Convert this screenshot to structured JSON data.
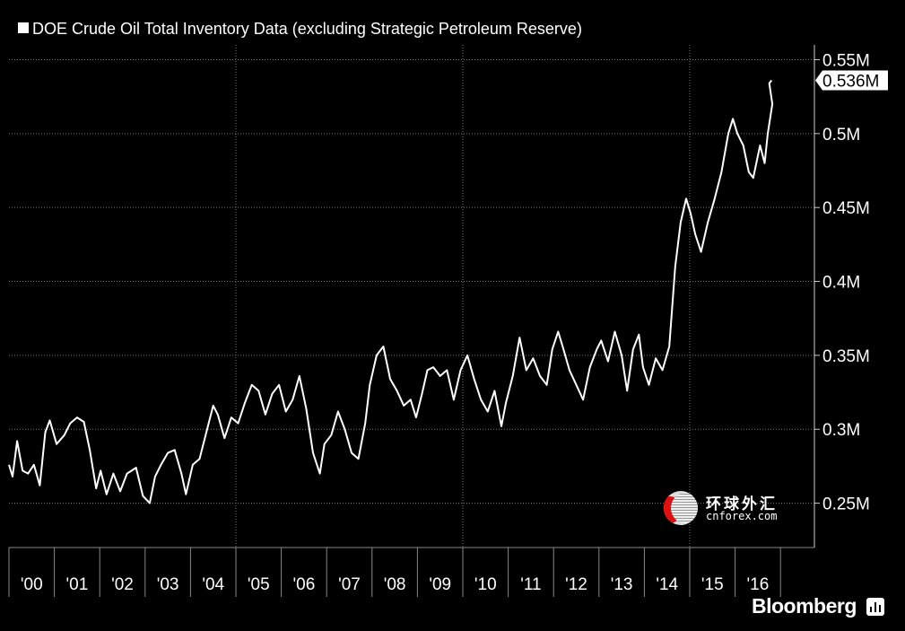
{
  "chart_data": {
    "type": "line",
    "title": "DOE Crude Oil Total Inventory Data (excluding Strategic Petroleum Reserve)",
    "xlabel": "",
    "ylabel": "",
    "x_range": [
      2000.0,
      2017.0
    ],
    "ylim": [
      0.22,
      0.56
    ],
    "y_ticks": [
      0.25,
      0.3,
      0.35,
      0.4,
      0.45,
      0.5,
      0.55
    ],
    "y_tick_labels": [
      "0.25M",
      "0.3M",
      "0.35M",
      "0.4M",
      "0.45M",
      "0.5M",
      "0.55M"
    ],
    "x_tick_labels": [
      "'00",
      "'01",
      "'02",
      "'03",
      "'04",
      "'05",
      "'06",
      "'07",
      "'08",
      "'09",
      "'10",
      "'11",
      "'12",
      "'13",
      "'14",
      "'15",
      "'16"
    ],
    "grid": true,
    "last_value_label": "0.536M",
    "series": [
      {
        "name": "",
        "color": "#ffffff",
        "x": [
          2000.0,
          2000.08,
          2000.18,
          2000.3,
          2000.42,
          2000.55,
          2000.68,
          2000.8,
          2000.9,
          2001.05,
          2001.22,
          2001.35,
          2001.5,
          2001.65,
          2001.78,
          2001.92,
          2002.02,
          2002.15,
          2002.3,
          2002.45,
          2002.6,
          2002.8,
          2002.95,
          2003.1,
          2003.22,
          2003.35,
          2003.5,
          2003.65,
          2003.8,
          2003.9,
          2004.05,
          2004.2,
          2004.35,
          2004.5,
          2004.6,
          2004.75,
          2004.9,
          2005.05,
          2005.2,
          2005.35,
          2005.5,
          2005.65,
          2005.8,
          2005.95,
          2006.1,
          2006.25,
          2006.4,
          2006.55,
          2006.7,
          2006.85,
          2006.95,
          2007.1,
          2007.25,
          2007.4,
          2007.55,
          2007.7,
          2007.85,
          2007.95,
          2008.1,
          2008.25,
          2008.4,
          2008.55,
          2008.7,
          2008.85,
          2008.97,
          2009.1,
          2009.22,
          2009.35,
          2009.5,
          2009.65,
          2009.8,
          2009.95,
          2010.1,
          2010.25,
          2010.4,
          2010.55,
          2010.7,
          2010.85,
          2010.95,
          2011.1,
          2011.25,
          2011.4,
          2011.55,
          2011.7,
          2011.85,
          2011.97,
          2012.1,
          2012.2,
          2012.35,
          2012.5,
          2012.65,
          2012.8,
          2012.95,
          2013.05,
          2013.2,
          2013.35,
          2013.5,
          2013.62,
          2013.75,
          2013.88,
          2013.97,
          2014.1,
          2014.25,
          2014.4,
          2014.55,
          2014.68,
          2014.8,
          2014.92,
          2015.02,
          2015.12,
          2015.25,
          2015.4,
          2015.55,
          2015.7,
          2015.85,
          2015.95,
          2016.05,
          2016.18,
          2016.3,
          2016.4,
          2016.55,
          2016.65,
          2016.72,
          2016.82,
          2016.95,
          2017.0
        ],
        "values": [
          0.276,
          0.268,
          0.292,
          0.272,
          0.27,
          0.276,
          0.262,
          0.298,
          0.306,
          0.29,
          0.296,
          0.304,
          0.308,
          0.305,
          0.286,
          0.26,
          0.272,
          0.256,
          0.27,
          0.258,
          0.27,
          0.274,
          0.255,
          0.25,
          0.268,
          0.276,
          0.284,
          0.286,
          0.27,
          0.256,
          0.276,
          0.28,
          0.298,
          0.316,
          0.31,
          0.294,
          0.308,
          0.304,
          0.318,
          0.33,
          0.326,
          0.31,
          0.324,
          0.33,
          0.312,
          0.32,
          0.336,
          0.314,
          0.284,
          0.27,
          0.29,
          0.296,
          0.312,
          0.3,
          0.284,
          0.28,
          0.304,
          0.33,
          0.35,
          0.356,
          0.334,
          0.326,
          0.316,
          0.32,
          0.308,
          0.324,
          0.34,
          0.342,
          0.336,
          0.34,
          0.32,
          0.34,
          0.35,
          0.334,
          0.32,
          0.312,
          0.326,
          0.302,
          0.318,
          0.336,
          0.362,
          0.34,
          0.348,
          0.336,
          0.33,
          0.354,
          0.366,
          0.356,
          0.34,
          0.33,
          0.32,
          0.342,
          0.354,
          0.36,
          0.346,
          0.366,
          0.35,
          0.326,
          0.354,
          0.364,
          0.342,
          0.33,
          0.348,
          0.34,
          0.356,
          0.41,
          0.44,
          0.456,
          0.446,
          0.432,
          0.42,
          0.44,
          0.456,
          0.474,
          0.5,
          0.51,
          0.5,
          0.492,
          0.474,
          0.47,
          0.492,
          0.48,
          0.5,
          0.52,
          0.534,
          0.536
        ]
      }
    ]
  },
  "branding": {
    "logo_text": "Bloomberg",
    "watermark_cn": "环球外汇",
    "watermark_en": "cnforex.com"
  }
}
